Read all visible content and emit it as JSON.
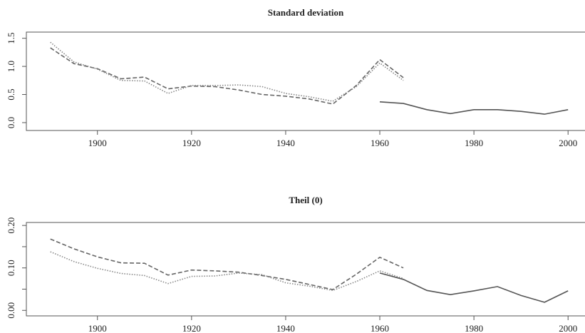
{
  "chart_data": [
    {
      "type": "line",
      "title": "Standard deviation",
      "x": [
        1890,
        1895,
        1900,
        1905,
        1910,
        1915,
        1920,
        1925,
        1930,
        1935,
        1940,
        1945,
        1950,
        1955,
        1960,
        1965,
        1970,
        1975,
        1980,
        1985,
        1990,
        1995,
        2000
      ],
      "series": [
        {
          "color": "#555555",
          "dash": "solid",
          "values": [
            null,
            null,
            null,
            null,
            null,
            null,
            null,
            null,
            null,
            null,
            null,
            null,
            null,
            null,
            0.37,
            0.34,
            0.23,
            0.16,
            0.23,
            0.23,
            0.2,
            0.15,
            0.23
          ]
        },
        {
          "color": "#666666",
          "dash": "dashed",
          "values": [
            1.33,
            1.05,
            0.96,
            0.78,
            0.81,
            0.6,
            0.65,
            0.64,
            0.58,
            0.5,
            0.47,
            0.42,
            0.33,
            0.66,
            1.12,
            0.8,
            null,
            null,
            null,
            null,
            null,
            null,
            null
          ]
        },
        {
          "color": "#888888",
          "dash": "dotted",
          "values": [
            1.43,
            1.08,
            0.95,
            0.75,
            0.74,
            0.52,
            0.66,
            0.66,
            0.67,
            0.64,
            0.52,
            0.46,
            0.38,
            0.64,
            1.06,
            0.75,
            null,
            null,
            null,
            null,
            null,
            null,
            null
          ]
        }
      ],
      "xlim": [
        1884.9,
        2003.6
      ],
      "xticks": [
        1900,
        1920,
        1940,
        1960,
        1980,
        2000
      ],
      "ylim": [
        -0.14,
        1.61
      ],
      "yticks": [
        {
          "value": 0,
          "label": "0.0"
        },
        0.5,
        {
          "value": 1,
          "label": "1.0"
        },
        1.5
      ]
    },
    {
      "type": "line",
      "title": "Theil (0)",
      "x": [
        1890,
        1895,
        1900,
        1905,
        1910,
        1915,
        1920,
        1925,
        1930,
        1935,
        1940,
        1945,
        1950,
        1955,
        1960,
        1965,
        1970,
        1975,
        1980,
        1985,
        1990,
        1995,
        2000
      ],
      "series": [
        {
          "color": "#555555",
          "dash": "solid",
          "values": [
            null,
            null,
            null,
            null,
            null,
            null,
            null,
            null,
            null,
            null,
            null,
            null,
            null,
            null,
            0.088,
            0.073,
            0.047,
            0.037,
            0.046,
            0.056,
            0.035,
            0.019,
            0.046
          ]
        },
        {
          "color": "#666666",
          "dash": "dashed",
          "values": [
            0.168,
            0.145,
            0.126,
            0.112,
            0.111,
            0.083,
            0.095,
            0.093,
            0.09,
            0.082,
            0.073,
            0.061,
            0.049,
            0.085,
            0.125,
            0.1,
            null,
            null,
            null,
            null,
            null,
            null,
            null
          ]
        },
        {
          "color": "#888888",
          "dash": "dotted",
          "values": [
            0.138,
            0.115,
            0.099,
            0.087,
            0.082,
            0.063,
            0.08,
            0.081,
            0.088,
            0.084,
            0.065,
            0.057,
            0.047,
            0.068,
            0.093,
            0.075,
            null,
            null,
            null,
            null,
            null,
            null,
            null
          ]
        }
      ],
      "xlim": [
        1884.9,
        2003.6
      ],
      "xticks": [
        1900,
        1920,
        1940,
        1960,
        1980,
        2000
      ],
      "ylim": [
        -0.013,
        0.207
      ],
      "yticks": [
        {
          "value": 0,
          "label": "0.00"
        },
        {
          "value": 0.05,
          "label": null
        },
        {
          "value": 0.1,
          "label": "0.10"
        },
        {
          "value": 0.15,
          "label": null
        },
        {
          "value": 0.2,
          "label": "0.20"
        }
      ]
    }
  ]
}
